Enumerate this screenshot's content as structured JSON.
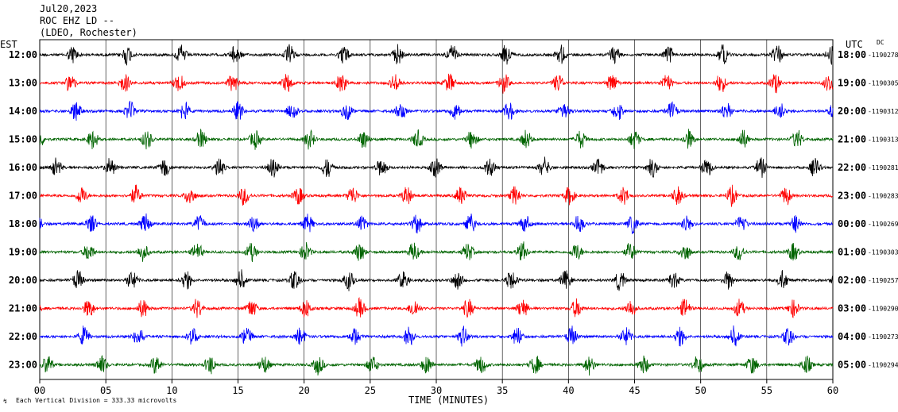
{
  "header": {
    "date": "Jul20,2023",
    "station": "ROC EHZ LD --",
    "network": "(LDEO, Rochester)"
  },
  "left_axis_label": "EST",
  "right_axis_label": "UTC",
  "dc_label": "DC",
  "scale_note": "Each Vertical Division =  333.33 microvolts",
  "x_axis_title": "TIME (MINUTES)",
  "colors": {
    "black": "#000000",
    "red": "#ff0000",
    "blue": "#0000ff",
    "green": "#006400"
  },
  "chart_data": {
    "type": "line",
    "subtype": "helicorder",
    "xlim": [
      0,
      60
    ],
    "x_ticks": [
      "00",
      "05",
      "10",
      "15",
      "20",
      "25",
      "30",
      "35",
      "40",
      "45",
      "50",
      "55",
      "60"
    ],
    "grid": "vertical-at-each-minute-mark",
    "rows": [
      {
        "est": "12:00",
        "utc": "18:00",
        "dc": "-1190278",
        "color": "black"
      },
      {
        "est": "13:00",
        "utc": "19:00",
        "dc": "-1190305",
        "color": "red"
      },
      {
        "est": "14:00",
        "utc": "20:00",
        "dc": "-1190312",
        "color": "blue"
      },
      {
        "est": "15:00",
        "utc": "21:00",
        "dc": "-1190313",
        "color": "green"
      },
      {
        "est": "16:00",
        "utc": "22:00",
        "dc": "-1190281",
        "color": "black"
      },
      {
        "est": "17:00",
        "utc": "23:00",
        "dc": "-1190283",
        "color": "red"
      },
      {
        "est": "18:00",
        "utc": "00:00",
        "dc": "-1190269",
        "color": "blue"
      },
      {
        "est": "19:00",
        "utc": "01:00",
        "dc": "-1190303",
        "color": "green"
      },
      {
        "est": "20:00",
        "utc": "02:00",
        "dc": "-1190257",
        "color": "black"
      },
      {
        "est": "21:00",
        "utc": "03:00",
        "dc": "-1190290",
        "color": "red"
      },
      {
        "est": "22:00",
        "utc": "04:00",
        "dc": "-1190273",
        "color": "blue"
      },
      {
        "est": "23:00",
        "utc": "05:00",
        "dc": "-1190294",
        "color": "green"
      }
    ]
  }
}
